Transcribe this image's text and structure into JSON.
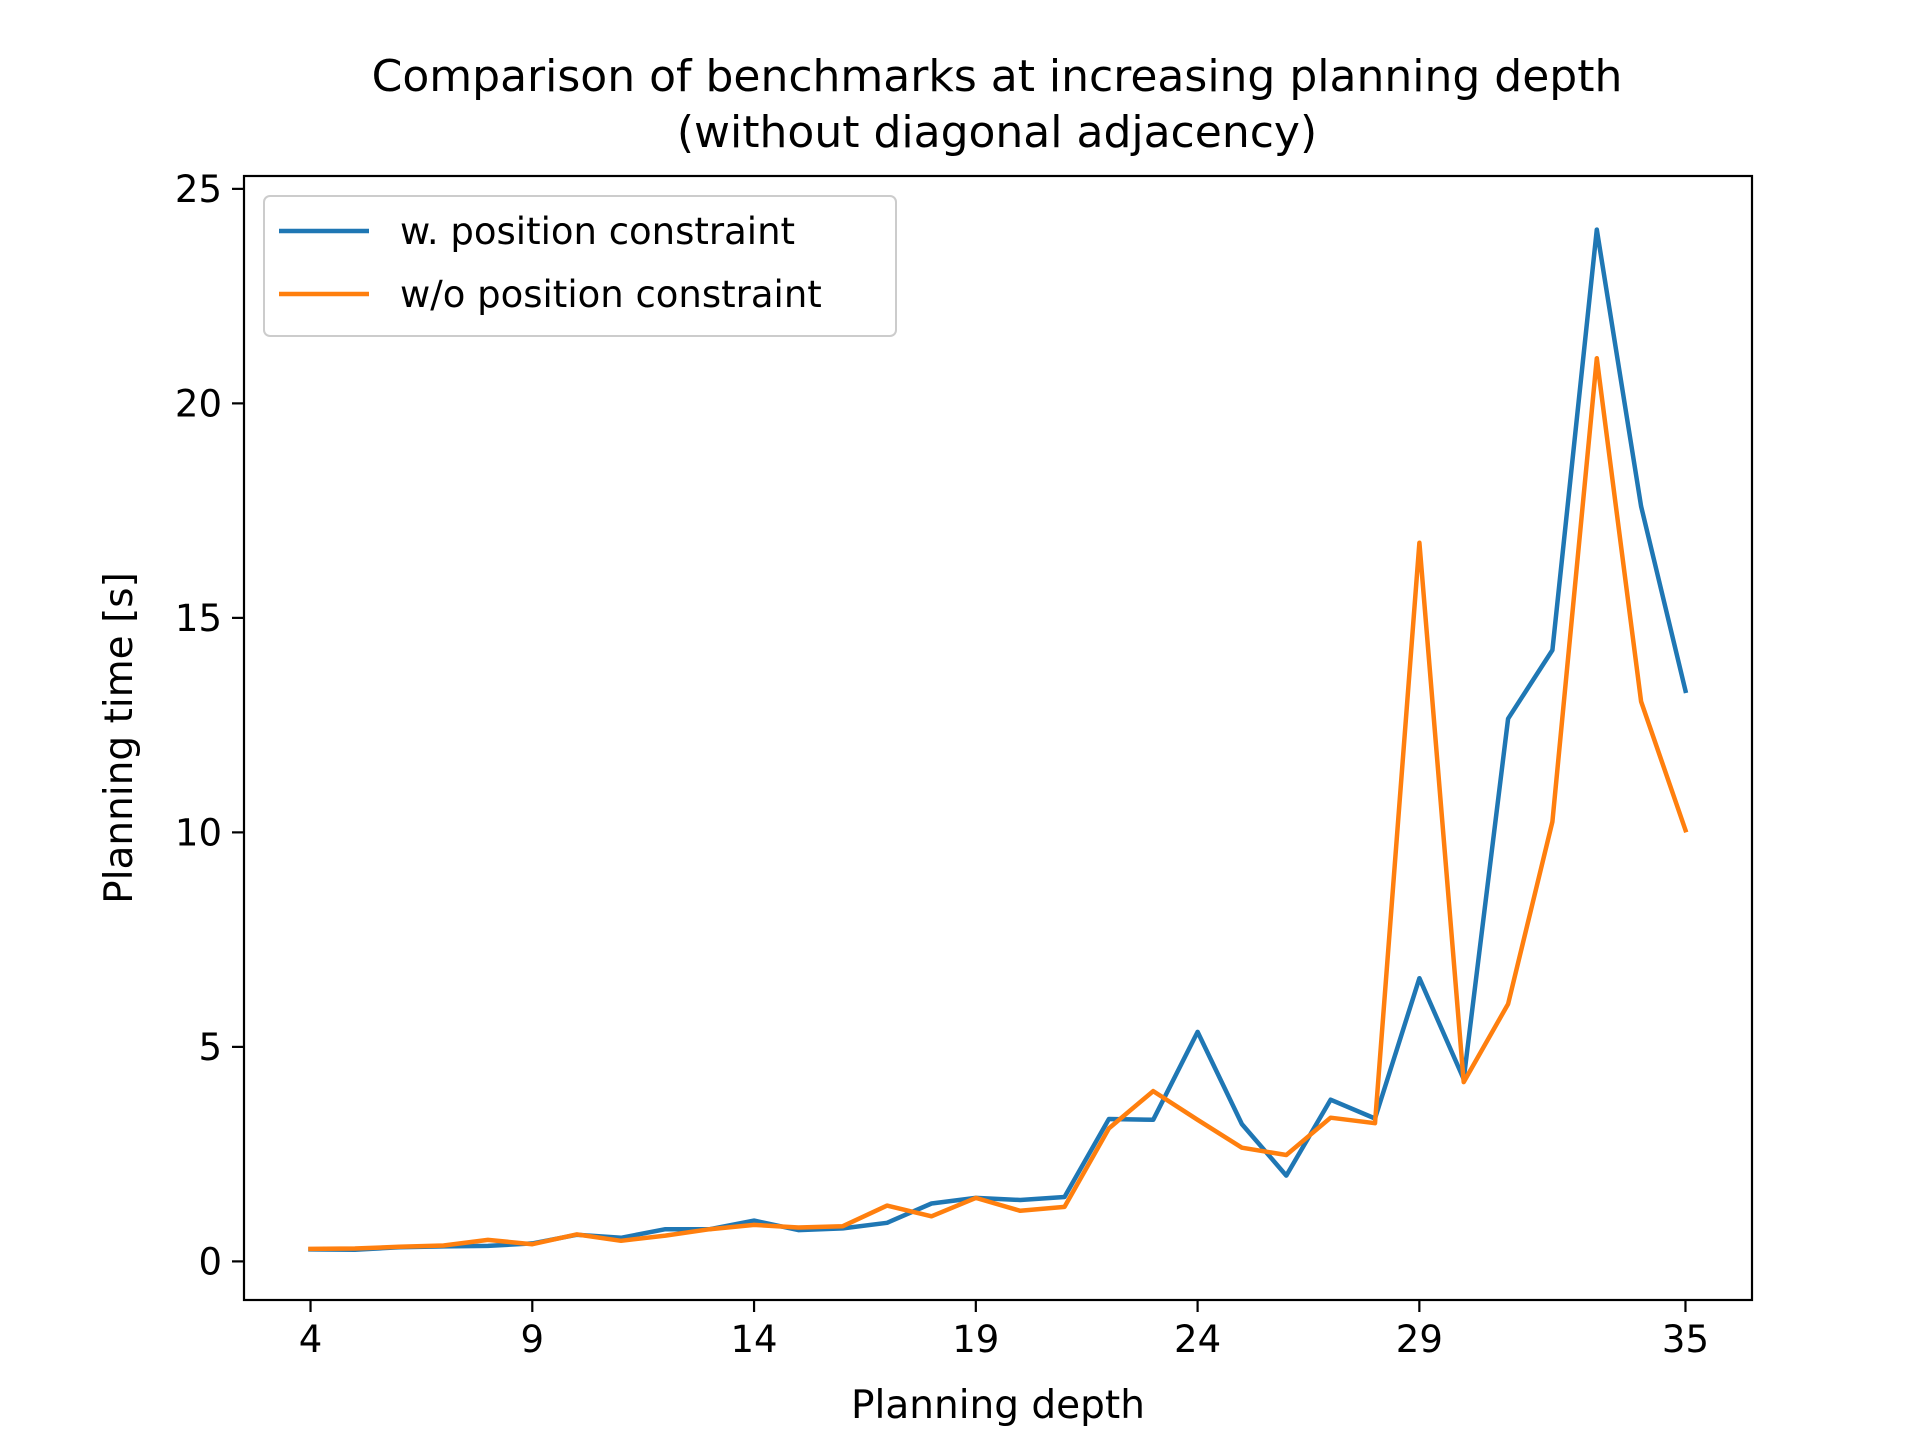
{
  "chart_data": {
    "type": "line",
    "title": "Comparison of benchmarks at increasing planning depth",
    "subtitle": "(without diagonal adjacency)",
    "xlabel": "Planning depth",
    "ylabel": "Planning time [s]",
    "xlim": [
      2.5,
      36.5
    ],
    "ylim": [
      -0.9,
      25.3
    ],
    "xticks": [
      4,
      9,
      14,
      19,
      24,
      29,
      35
    ],
    "yticks": [
      0,
      5,
      10,
      15,
      20,
      25
    ],
    "grid": false,
    "legend_position": "top-left",
    "x": [
      4,
      5,
      6,
      7,
      8,
      9,
      10,
      11,
      12,
      13,
      14,
      15,
      16,
      17,
      18,
      19,
      20,
      21,
      22,
      23,
      24,
      25,
      26,
      27,
      28,
      29,
      30,
      31,
      32,
      33,
      34,
      35
    ],
    "series": [
      {
        "name": "w. position constraint",
        "color": "#1f77b4",
        "values": [
          0.28,
          0.27,
          0.33,
          0.35,
          0.36,
          0.42,
          0.62,
          0.55,
          0.75,
          0.75,
          0.95,
          0.73,
          0.77,
          0.9,
          1.35,
          1.48,
          1.43,
          1.5,
          3.32,
          3.3,
          5.35,
          3.2,
          2.0,
          3.77,
          3.33,
          6.6,
          4.25,
          12.65,
          14.25,
          24.05,
          17.6,
          13.3
        ]
      },
      {
        "name": "w/o position constraint",
        "color": "#ff7f0e",
        "values": [
          0.29,
          0.3,
          0.34,
          0.37,
          0.5,
          0.4,
          0.63,
          0.48,
          0.6,
          0.75,
          0.85,
          0.79,
          0.82,
          1.3,
          1.05,
          1.48,
          1.18,
          1.27,
          3.1,
          3.97,
          3.3,
          2.65,
          2.48,
          3.35,
          3.22,
          16.75,
          4.18,
          6.0,
          10.25,
          21.05,
          13.05,
          10.05
        ]
      }
    ]
  }
}
